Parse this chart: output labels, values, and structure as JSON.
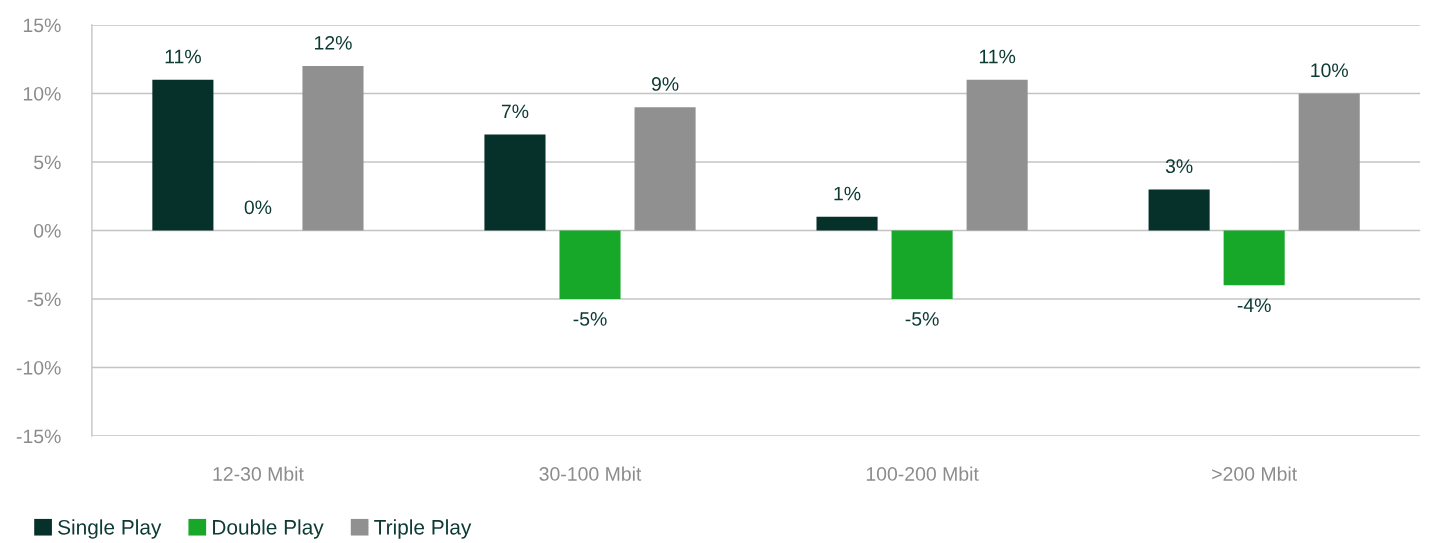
{
  "chart_data": {
    "type": "bar",
    "categories": [
      "12-30 Mbit",
      "30-100 Mbit",
      "100-200 Mbit",
      ">200 Mbit"
    ],
    "series": [
      {
        "name": "Single Play",
        "color": "#06302a",
        "values": [
          11,
          7,
          1,
          3
        ],
        "value_labels": [
          "11%",
          "7%",
          "1%",
          "3%"
        ]
      },
      {
        "name": "Double Play",
        "color": "#17a82a",
        "values": [
          0,
          -5,
          -5,
          -4
        ],
        "value_labels": [
          "0%",
          "-5%",
          "-5%",
          "-4%"
        ]
      },
      {
        "name": "Triple Play",
        "color": "#909090",
        "values": [
          12,
          9,
          11,
          10
        ],
        "value_labels": [
          "12%",
          "9%",
          "11%",
          "10%"
        ]
      }
    ],
    "ylim": [
      -15,
      15
    ],
    "yticks": [
      {
        "value": -15,
        "label": "-15%"
      },
      {
        "value": -10,
        "label": "-10%"
      },
      {
        "value": -5,
        "label": "-5%"
      },
      {
        "value": 0,
        "label": "0%"
      },
      {
        "value": 5,
        "label": "5%"
      },
      {
        "value": 10,
        "label": "10%"
      },
      {
        "value": 15,
        "label": "15%"
      }
    ],
    "grid": "y",
    "legend": "bottom left"
  }
}
